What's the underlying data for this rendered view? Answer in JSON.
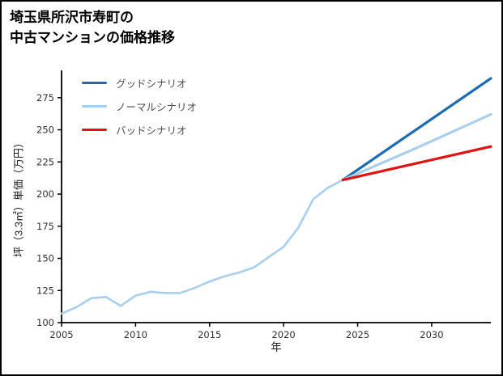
{
  "title": {
    "line1": "埼玉県所沢市寿町の",
    "line2": "中古マンションの価格推移"
  },
  "chart_data": {
    "type": "line",
    "title": "埼玉県所沢市寿町の中古マンションの価格推移",
    "xlabel": "年",
    "ylabel": "坪（3.3㎡）単価（万円）",
    "xlim": [
      2005,
      2034
    ],
    "ylim": [
      100,
      295
    ],
    "xticks": [
      2005,
      2010,
      2015,
      2020,
      2025,
      2030
    ],
    "yticks": [
      100,
      125,
      150,
      175,
      200,
      225,
      250,
      275
    ],
    "grid": false,
    "legend_position": "upper-left",
    "axis_color": "#000000",
    "series": [
      {
        "name": "historical",
        "color": "#a9cfee",
        "width": 2.6,
        "in_legend": false,
        "x": [
          2005,
          2006,
          2007,
          2008,
          2009,
          2010,
          2011,
          2012,
          2013,
          2014,
          2015,
          2016,
          2017,
          2018,
          2019,
          2020,
          2021,
          2022,
          2023,
          2024
        ],
        "y": [
          107,
          112,
          119,
          120,
          113,
          121,
          124,
          123,
          123,
          127,
          132,
          136,
          139,
          143,
          151,
          159,
          174,
          196,
          205,
          211
        ]
      },
      {
        "name": "グッドシナリオ",
        "color": "#1b6cb5",
        "width": 3.2,
        "in_legend": true,
        "x": [
          2024,
          2034
        ],
        "y": [
          211,
          290
        ]
      },
      {
        "name": "ノーマルシナリオ",
        "color": "#a9cfee",
        "width": 3.2,
        "in_legend": true,
        "x": [
          2024,
          2029,
          2034
        ],
        "y": [
          211,
          236,
          262
        ]
      },
      {
        "name": "バッドシナリオ",
        "color": "#e01212",
        "width": 3.2,
        "in_legend": true,
        "x": [
          2024,
          2034
        ],
        "y": [
          211,
          237
        ]
      }
    ]
  }
}
